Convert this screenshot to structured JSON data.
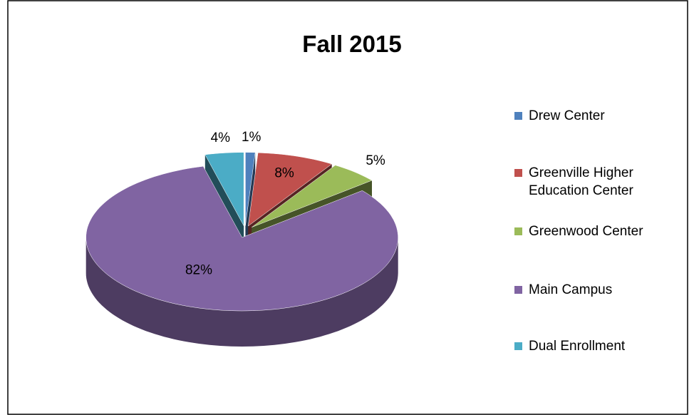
{
  "chart_data": {
    "type": "pie",
    "title": "Fall 2015",
    "categories": [
      "Drew Center",
      "Greenville Higher Education Center",
      "Greenwood Center",
      "Main Campus",
      "Dual Enrollment"
    ],
    "values": [
      1,
      8,
      5,
      82,
      4
    ],
    "value_labels": [
      "1%",
      "8%",
      "5%",
      "82%",
      "4%"
    ],
    "colors": [
      "#4f81bd",
      "#c0504d",
      "#9bbb59",
      "#8064a2",
      "#4bacc6"
    ],
    "legend": "right"
  }
}
